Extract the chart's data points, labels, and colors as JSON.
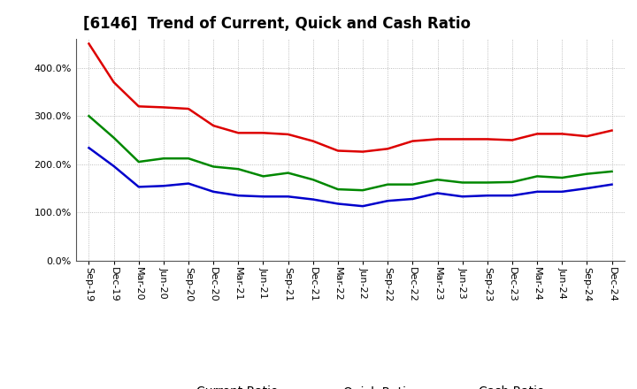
{
  "title": "[6146]  Trend of Current, Quick and Cash Ratio",
  "x_labels": [
    "Sep-19",
    "Dec-19",
    "Mar-20",
    "Jun-20",
    "Sep-20",
    "Dec-20",
    "Mar-21",
    "Jun-21",
    "Sep-21",
    "Dec-21",
    "Mar-22",
    "Jun-22",
    "Sep-22",
    "Dec-22",
    "Mar-23",
    "Jun-23",
    "Sep-23",
    "Dec-23",
    "Mar-24",
    "Jun-24",
    "Sep-24",
    "Dec-24"
  ],
  "current_ratio": [
    450,
    370,
    320,
    318,
    315,
    280,
    265,
    265,
    262,
    248,
    228,
    226,
    232,
    248,
    252,
    252,
    252,
    250,
    263,
    263,
    258,
    270
  ],
  "quick_ratio": [
    300,
    255,
    205,
    212,
    212,
    195,
    190,
    175,
    182,
    168,
    148,
    146,
    158,
    158,
    168,
    162,
    162,
    163,
    175,
    172,
    180,
    185
  ],
  "cash_ratio": [
    234,
    196,
    153,
    155,
    160,
    143,
    135,
    133,
    133,
    127,
    118,
    113,
    124,
    128,
    140,
    133,
    135,
    135,
    143,
    143,
    150,
    158
  ],
  "current_color": "#dd0000",
  "quick_color": "#008800",
  "cash_color": "#0000cc",
  "bg_color": "#ffffff",
  "plot_bg_color": "#ffffff",
  "grid_color": "#aaaaaa",
  "ylim": [
    0,
    460
  ],
  "yticks": [
    0,
    100,
    200,
    300,
    400
  ],
  "legend_labels": [
    "Current Ratio",
    "Quick Ratio",
    "Cash Ratio"
  ],
  "line_width": 1.8,
  "title_fontsize": 12,
  "tick_fontsize": 8,
  "legend_fontsize": 10
}
